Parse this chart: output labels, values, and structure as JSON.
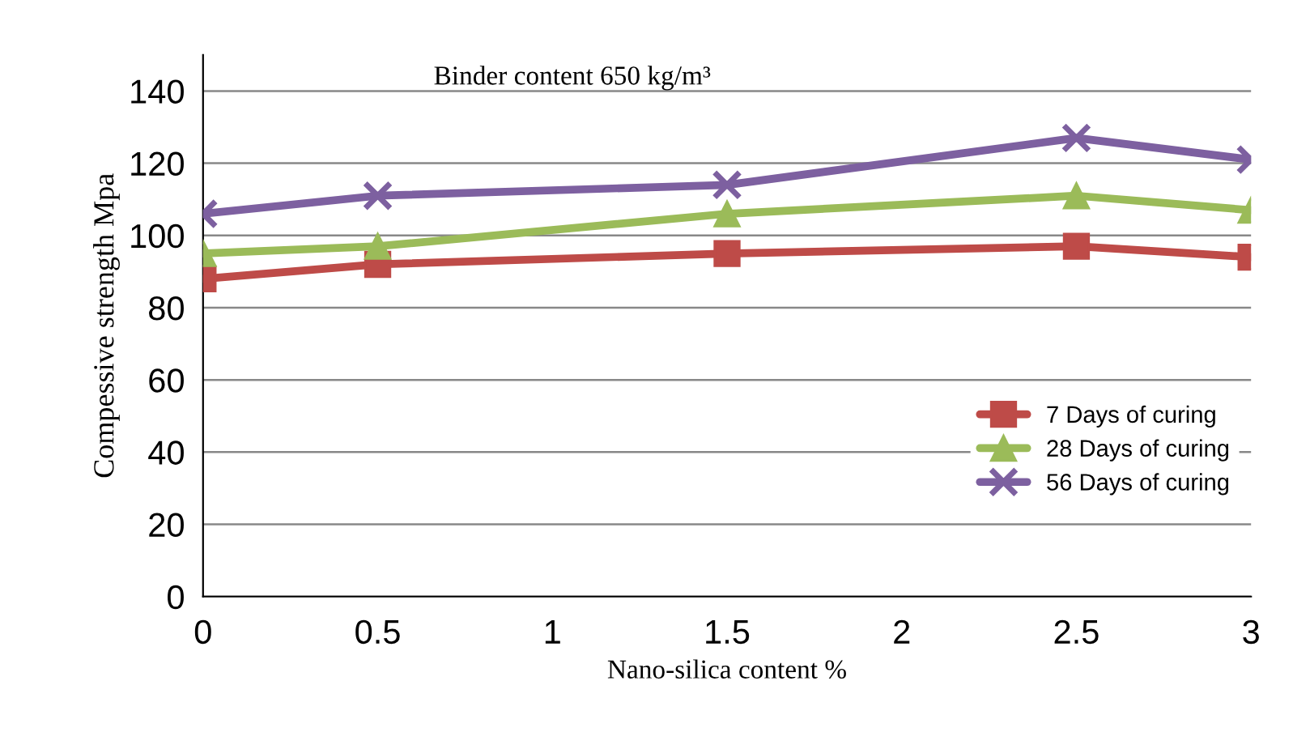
{
  "chart_data": {
    "type": "line",
    "annotations": [
      "Binder content 650 kg/m³"
    ],
    "xlabel": "Nano-silica content %",
    "ylabel": "Compessive strength Mpa",
    "x": [
      0,
      0.5,
      1.5,
      2.5,
      3
    ],
    "series": [
      {
        "name": "7 Days of curing",
        "color": "#be4b48",
        "marker": "square",
        "values": [
          88,
          92,
          95,
          97,
          94
        ]
      },
      {
        "name": "28 Days of curing",
        "color": "#9bbb59",
        "marker": "triangle",
        "values": [
          95,
          97,
          106,
          111,
          107
        ]
      },
      {
        "name": "56 Days of curing",
        "color": "#7d60a0",
        "marker": "cross",
        "values": [
          106,
          111,
          114,
          127,
          121
        ]
      }
    ],
    "xlim": [
      0,
      3
    ],
    "xticks": [
      0,
      0.5,
      1,
      1.5,
      2,
      2.5,
      3
    ],
    "ylim": [
      0,
      150
    ],
    "yticks": [
      0,
      20,
      40,
      60,
      80,
      100,
      120,
      140
    ],
    "grid": "y",
    "legend": "right",
    "line_style": "solid"
  }
}
